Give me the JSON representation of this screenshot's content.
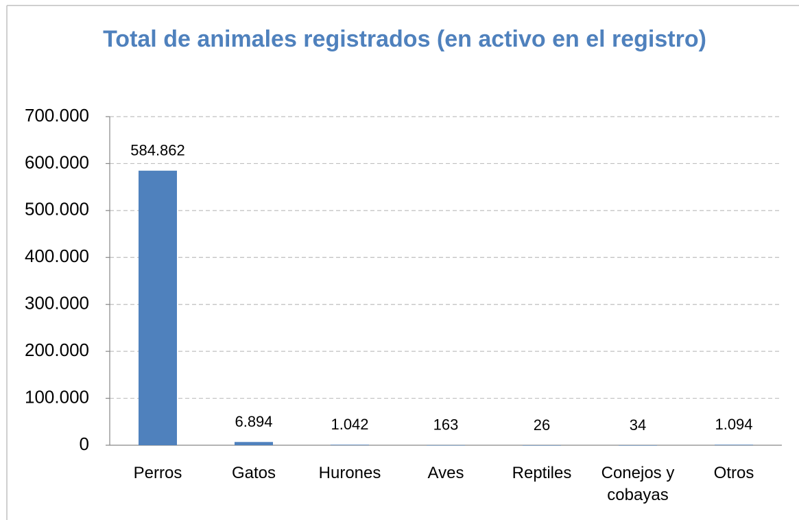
{
  "chart_data": {
    "type": "bar",
    "title": "Total de animales registrados (en activo en el registro)",
    "categories": [
      "Perros",
      "Gatos",
      "Hurones",
      "Aves",
      "Reptiles",
      "Conejos y cobayas",
      "Otros"
    ],
    "values": [
      584862,
      6894,
      1042,
      163,
      26,
      34,
      1094
    ],
    "value_labels": [
      "584.862",
      "6.894",
      "1.042",
      "163",
      "26",
      "34",
      "1.094"
    ],
    "color": "#4f81bd",
    "ylim": [
      0,
      700000
    ],
    "yticks": [
      0,
      {
        "value": 100000,
        "label": "100.000"
      },
      {
        "value": 200000,
        "label": "200.000"
      },
      {
        "value": 300000,
        "label": "300.000"
      },
      {
        "value": 400000,
        "label": "400.000"
      },
      {
        "value": 500000,
        "label": "500.000"
      },
      {
        "value": 600000,
        "label": "600.000"
      },
      {
        "value": 700000,
        "label": "700.000"
      }
    ],
    "grid": true
  }
}
